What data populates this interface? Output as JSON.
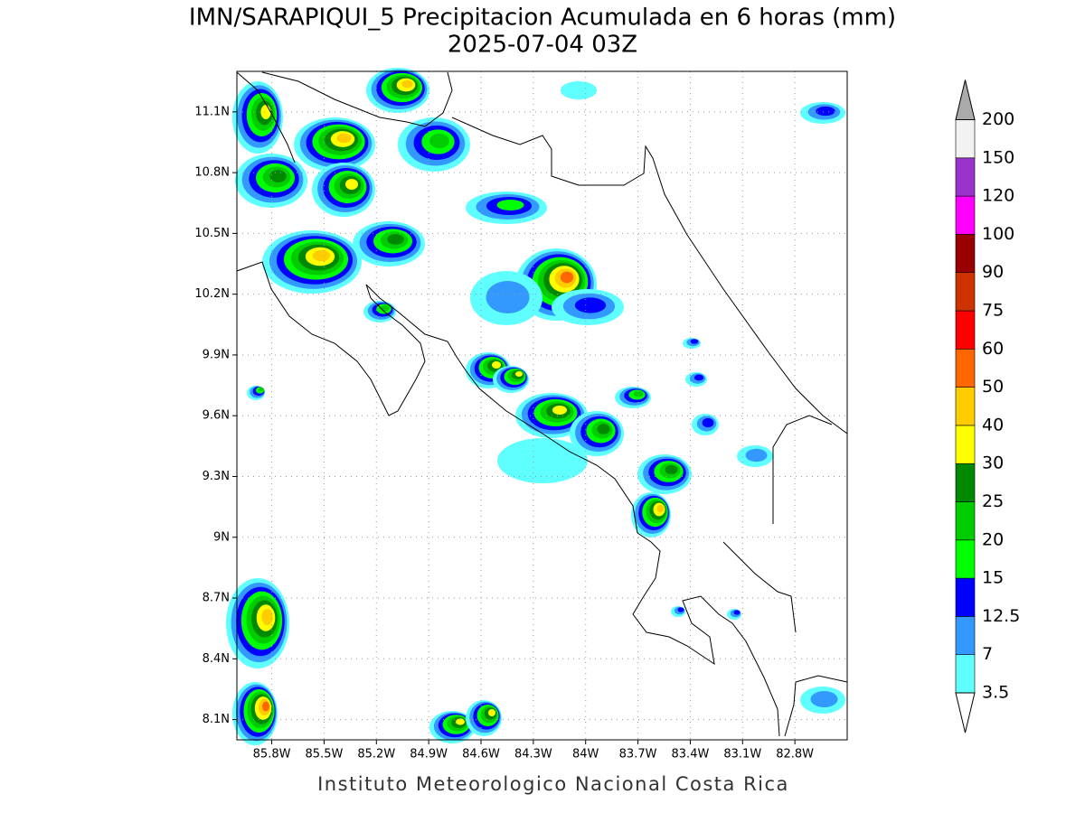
{
  "header": {
    "title": "IMN/SARAPIQUI_5 Precipitacion Acumulada en 6 horas (mm)",
    "subtitle": "2025-07-04 03Z"
  },
  "map": {
    "lat_range": [
      8.0,
      11.3
    ],
    "lon_range": [
      -86.0,
      -82.5
    ],
    "grid": true,
    "lat_ticks": [
      {
        "value": 11.1,
        "label": "11.1N"
      },
      {
        "value": 10.8,
        "label": "10.8N"
      },
      {
        "value": 10.5,
        "label": "10.5N"
      },
      {
        "value": 10.2,
        "label": "10.2N"
      },
      {
        "value": 9.9,
        "label": "9.9N"
      },
      {
        "value": 9.6,
        "label": "9.6N"
      },
      {
        "value": 9.3,
        "label": "9.3N"
      },
      {
        "value": 9.0,
        "label": "9N"
      },
      {
        "value": 8.7,
        "label": "8.7N"
      },
      {
        "value": 8.4,
        "label": "8.4N"
      },
      {
        "value": 8.1,
        "label": "8.1N"
      }
    ],
    "lon_ticks": [
      {
        "value": -85.8,
        "label": "85.8W"
      },
      {
        "value": -85.5,
        "label": "85.5W"
      },
      {
        "value": -85.2,
        "label": "85.2W"
      },
      {
        "value": -84.9,
        "label": "84.9W"
      },
      {
        "value": -84.6,
        "label": "84.6W"
      },
      {
        "value": -84.3,
        "label": "84.3W"
      },
      {
        "value": -84.0,
        "label": "84W"
      },
      {
        "value": -83.7,
        "label": "83.7W"
      },
      {
        "value": -83.4,
        "label": "83.4W"
      },
      {
        "value": -83.1,
        "label": "83.1W"
      },
      {
        "value": -82.8,
        "label": "82.8W"
      }
    ]
  },
  "colorbar": {
    "levels": [
      3.5,
      7,
      12.5,
      15,
      20,
      25,
      30,
      40,
      50,
      60,
      75,
      90,
      100,
      120,
      150,
      200
    ],
    "colors": [
      "#5fffff",
      "#3399ff",
      "#0000ff",
      "#00ff00",
      "#00cc00",
      "#008800",
      "#ffff00",
      "#ffcc00",
      "#ff6600",
      "#ff0000",
      "#cc3300",
      "#990000",
      "#ff00ff",
      "#9933cc",
      "#f2f2f2"
    ],
    "under_color": "#ffffff",
    "over_color": "#aaaaaa"
  },
  "footer": "Instituto Meteorologico Nacional Costa Rica"
}
